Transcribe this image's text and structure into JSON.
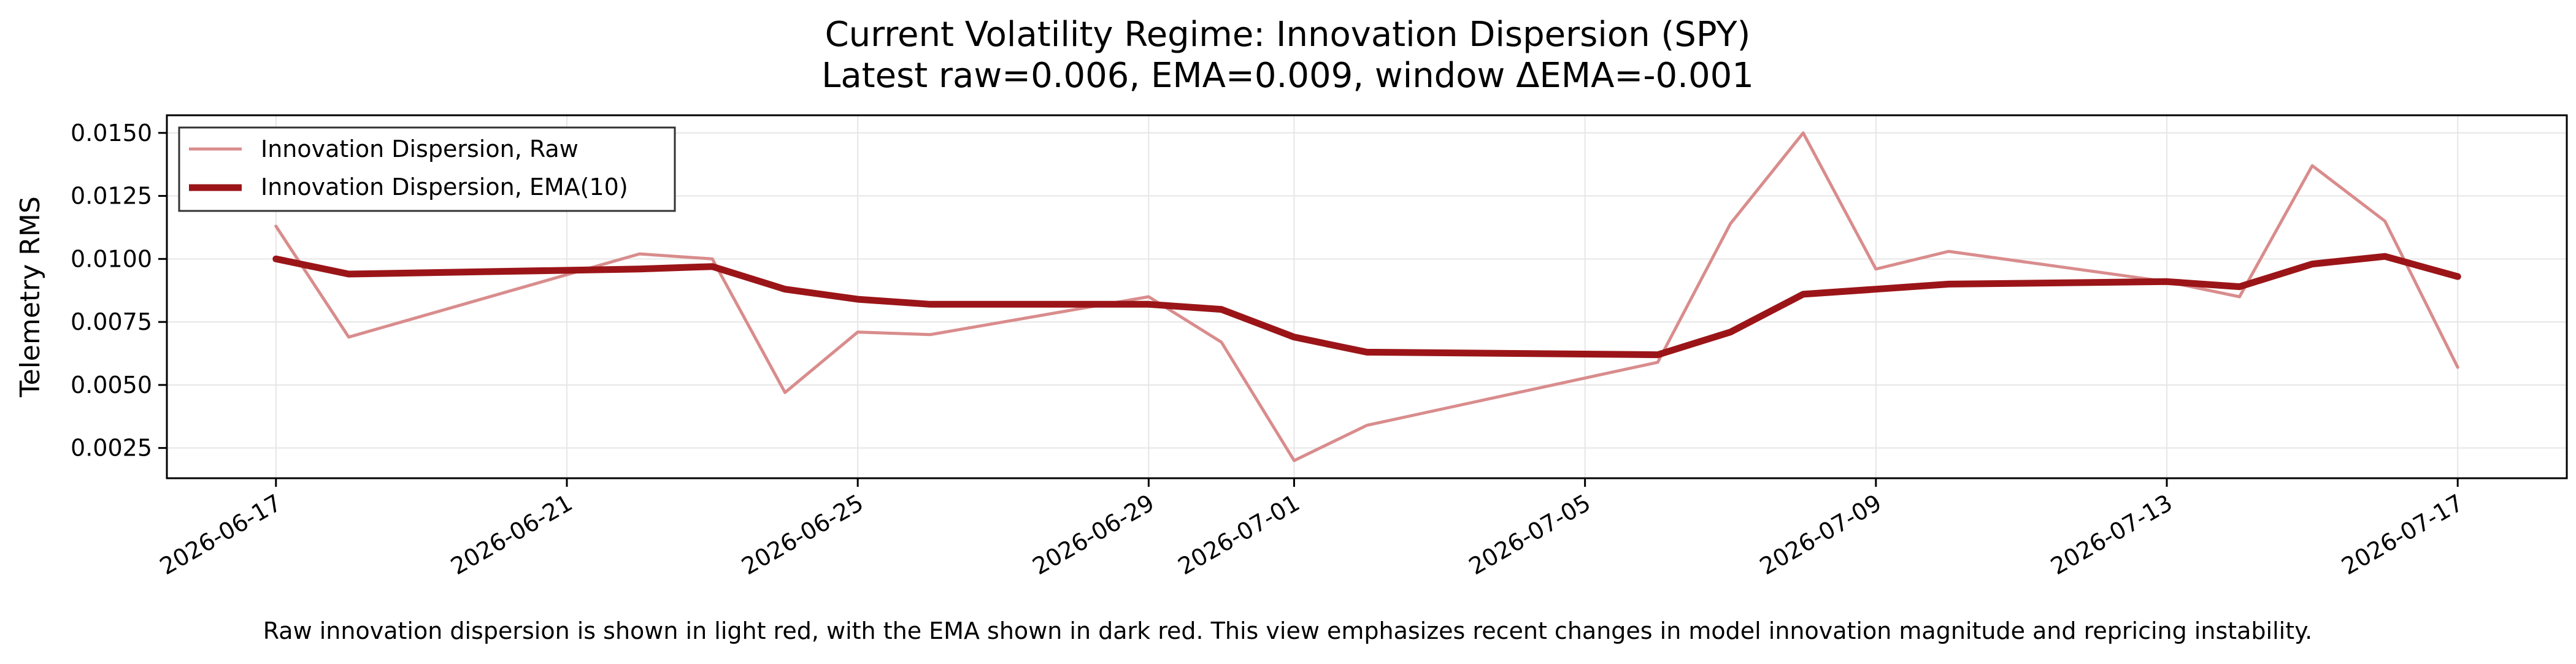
{
  "chart_data": {
    "type": "line",
    "title": "Current Volatility Regime: Innovation Dispersion (SPY)",
    "subtitle": "Latest raw=0.006, EMA=0.009, window ΔEMA=-0.001",
    "xlabel": "",
    "ylabel": "Telemetry RMS",
    "caption": "Raw innovation dispersion is shown in light red, with the EMA shown in dark red. This view emphasizes recent changes in model innovation magnitude and repricing instability.",
    "grid": true,
    "legend_position": "top-left",
    "xlim": [
      "2026-06-15T12:00",
      "2026-07-18T12:00"
    ],
    "ylim": [
      0.0013,
      0.0157
    ],
    "x_ticks": [
      "2026-06-17",
      "2026-06-21",
      "2026-06-25",
      "2026-06-29",
      "2026-07-01",
      "2026-07-05",
      "2026-07-09",
      "2026-07-13",
      "2026-07-17"
    ],
    "y_ticks": [
      0.0025,
      0.005,
      0.0075,
      0.01,
      0.0125,
      0.015
    ],
    "y_tick_labels": [
      "0.0025",
      "0.0050",
      "0.0075",
      "0.0100",
      "0.0125",
      "0.0150"
    ],
    "x": [
      "2026-06-17",
      "2026-06-18",
      "2026-06-22",
      "2026-06-23",
      "2026-06-24",
      "2026-06-25",
      "2026-06-26",
      "2026-06-29",
      "2026-06-30",
      "2026-07-01",
      "2026-07-02",
      "2026-07-06",
      "2026-07-07",
      "2026-07-08",
      "2026-07-09",
      "2026-07-10",
      "2026-07-13",
      "2026-07-14",
      "2026-07-15",
      "2026-07-16",
      "2026-07-17"
    ],
    "series": [
      {
        "name": "Innovation Dispersion, Raw",
        "color": "#d98c8c",
        "values": [
          0.0113,
          0.0069,
          0.0102,
          0.01,
          0.0047,
          0.0071,
          0.007,
          0.0085,
          0.0067,
          0.002,
          0.0034,
          0.0059,
          0.0114,
          0.015,
          0.0096,
          0.0103,
          0.0091,
          0.0085,
          0.0137,
          0.0115,
          0.0057
        ]
      },
      {
        "name": "Innovation Dispersion, EMA(10)",
        "color": "#9b1518",
        "values": [
          0.01,
          0.0094,
          0.0096,
          0.0097,
          0.0088,
          0.0084,
          0.0082,
          0.0082,
          0.008,
          0.0069,
          0.0063,
          0.0062,
          0.0071,
          0.0086,
          0.0088,
          0.009,
          0.0091,
          0.0089,
          0.0098,
          0.0101,
          0.0093
        ]
      }
    ]
  }
}
